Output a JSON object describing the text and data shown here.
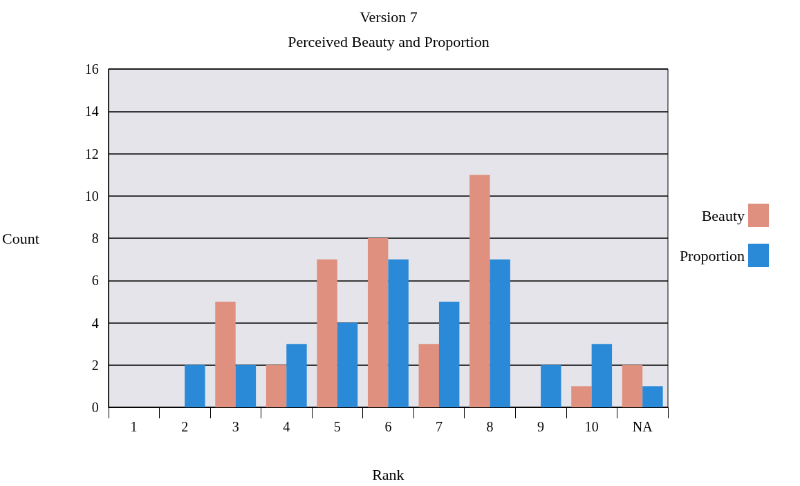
{
  "chart_data": {
    "type": "bar",
    "title": "Version 7",
    "subtitle": "Perceived Beauty and Proportion",
    "xlabel": "Rank",
    "ylabel": "Count",
    "categories": [
      "1",
      "2",
      "3",
      "4",
      "5",
      "6",
      "7",
      "8",
      "9",
      "10",
      "NA"
    ],
    "series": [
      {
        "name": "Beauty",
        "color": "#e0907e",
        "values": [
          0,
          0,
          5,
          2,
          7,
          8,
          3,
          11,
          0,
          1,
          2
        ]
      },
      {
        "name": "Proportion",
        "color": "#2a8ad8",
        "values": [
          0,
          2,
          2,
          3,
          4,
          7,
          5,
          7,
          2,
          3,
          1
        ]
      }
    ],
    "ylim": [
      0,
      16
    ],
    "yticks": [
      0,
      2,
      4,
      6,
      8,
      10,
      12,
      14,
      16
    ],
    "grid": "y",
    "legend": "right"
  }
}
